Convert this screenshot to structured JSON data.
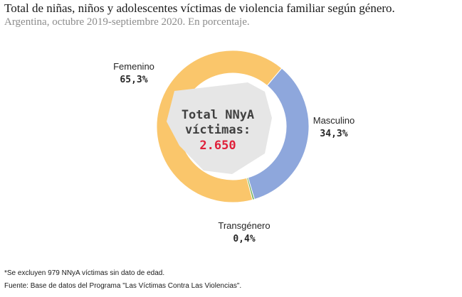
{
  "title": "Total de niñas, niños y adolescentes víctimas de violencia familiar según género.",
  "subtitle": "Argentina, octubre 2019-septiembre 2020. En porcentaje.",
  "center": {
    "line1": "Total NNyA",
    "line2": "víctimas:",
    "value": "2.650",
    "value_color": "#e0203a"
  },
  "chart_data": {
    "type": "pie",
    "categories": [
      "Femenino",
      "Masculino",
      "Transgénero"
    ],
    "values": [
      65.3,
      34.3,
      0.4
    ],
    "value_labels": [
      "65,3%",
      "34,3%",
      "0,4%"
    ],
    "colors": [
      "#fac66b",
      "#8ea7dc",
      "#6bab4f"
    ],
    "donut": true
  },
  "notes": {
    "footnote": "*Se excluyen 979 NNyA víctimas sin dato de edad.",
    "source": "Fuente: Base de datos del Programa \"Las Víctimas Contra Las Violencias\"."
  }
}
